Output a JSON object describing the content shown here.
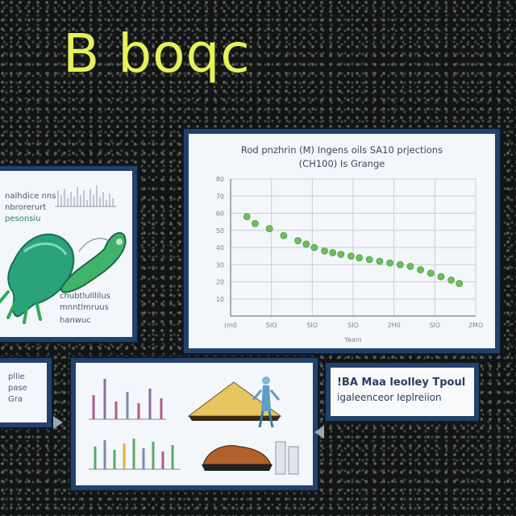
{
  "title": "B boqc",
  "main_chart": {
    "title_line1": "Rod pnzhrin (M) Ingens oils SA10 prjections",
    "title_line2": "(CH100) Is Grange",
    "xlabel": "Yeam",
    "colors": {
      "points": "#6cbf5a",
      "grid": "#c8ced6",
      "frame": "#24416b"
    }
  },
  "chart_data": {
    "type": "scatter",
    "title": "Rod pnzhrin (M) Ingens oils SA10 prjections (CH100) Is Grange",
    "xlabel": "Yeam",
    "ylabel": "",
    "x_tick_labels": [
      "(m0",
      "SIO",
      "SIO",
      "SIO",
      "2H0",
      "SIO",
      "2MO"
    ],
    "y_tick_labels": [
      "10",
      "20",
      "30",
      "40",
      "50",
      "60",
      "70",
      "80"
    ],
    "ylim": [
      0,
      80
    ],
    "xlim": [
      0,
      12
    ],
    "grid": true,
    "series": [
      {
        "x": [
          0.8,
          1.2,
          1.9,
          2.6,
          3.3,
          3.7,
          4.1,
          4.6,
          5.0,
          5.4,
          5.9,
          6.3,
          6.8,
          7.3,
          7.8,
          8.3,
          8.8,
          9.3,
          9.8,
          10.3,
          10.8,
          11.2
        ],
        "y": [
          58,
          54,
          51,
          47,
          44,
          42,
          40,
          38,
          37,
          36,
          35,
          34,
          33,
          32,
          31,
          30,
          29,
          27,
          25,
          23,
          21,
          19
        ]
      }
    ]
  },
  "left_panel": {
    "line1": "nalhdice nns",
    "line2": "nbrorerurt",
    "line3": "pesonsiu",
    "line4": "chubtlulllllus",
    "line5": "mnntlmruus",
    "line6": "hanwuc"
  },
  "small_panel": {
    "line1": "pllie",
    "line2": "pase",
    "line3": "Gra"
  },
  "callout": {
    "line1": "!BA Maa leolley Tpoul",
    "line2": "igaleenceor Ieplreiion"
  }
}
